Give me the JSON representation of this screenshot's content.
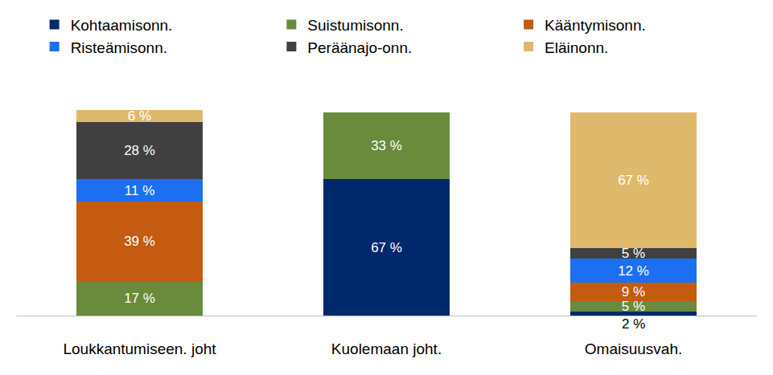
{
  "chart_data": {
    "type": "bar",
    "stacked": true,
    "data_labels": true,
    "tick_labels": "x",
    "legend": "top",
    "grid": false,
    "ylim": [
      0,
      101
    ],
    "categories": [
      "Loukkantumiseen. joht",
      "Kuolemaan joht.",
      "Omaisuusvah."
    ],
    "series": [
      {
        "name": "Kohtaamisonn.",
        "color": "#00296b",
        "values": [
          null,
          67,
          2
        ],
        "value_labels": [
          null,
          "67 %",
          "2 %"
        ]
      },
      {
        "name": "Suistumisonn.",
        "color": "#6a8a3c",
        "values": [
          17,
          33,
          5
        ],
        "value_labels": [
          "17 %",
          "33 %",
          "5 %"
        ]
      },
      {
        "name": "Kääntymisonn.",
        "color": "#c55a11",
        "values": [
          39,
          null,
          9
        ],
        "value_labels": [
          "39 %",
          null,
          "9 %"
        ]
      },
      {
        "name": "Risteämisonn.",
        "color": "#1d6ff2",
        "values": [
          11,
          null,
          12
        ],
        "value_labels": [
          "11 %",
          null,
          "12 %"
        ]
      },
      {
        "name": "Peräänajo-onn.",
        "color": "#404040",
        "values": [
          28,
          null,
          5
        ],
        "value_labels": [
          "28 %",
          null,
          "5 %"
        ]
      },
      {
        "name": "Eläinonn.",
        "color": "#dfb96b",
        "values": [
          6,
          null,
          67
        ],
        "value_labels": [
          "6 %",
          null,
          "67 %"
        ]
      }
    ]
  }
}
